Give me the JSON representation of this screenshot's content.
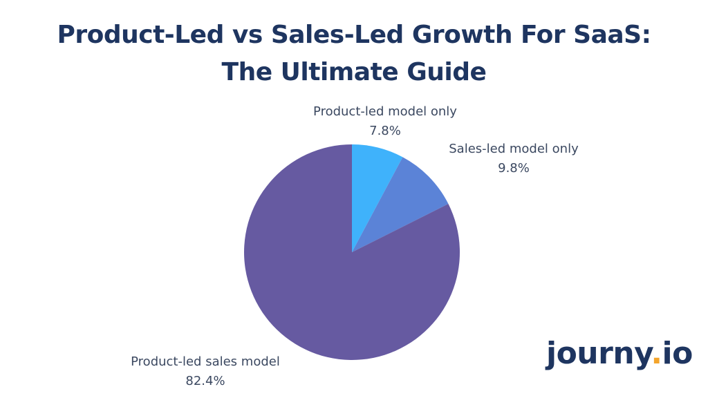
{
  "title": {
    "line1": "Product-Led vs Sales-Led Growth For SaaS:",
    "line2": "The Ultimate Guide"
  },
  "logo": {
    "name": "journy",
    "dot": ".",
    "suffix": "io",
    "text_color": "#1e3560",
    "dot_color": "#f4a52b"
  },
  "chart_data": {
    "type": "pie",
    "title": "Product-Led vs Sales-Led Growth For SaaS: The Ultimate Guide",
    "start_angle_deg": 0,
    "direction": "clockwise",
    "slices": [
      {
        "label": "Product-led model only",
        "value": 7.8,
        "value_label": "7.8%",
        "color": "#3fb2fb"
      },
      {
        "label": "Sales-led model only",
        "value": 9.8,
        "value_label": "9.8%",
        "color": "#5b83d7"
      },
      {
        "label": "Product-led sales model",
        "value": 82.4,
        "value_label": "82.4%",
        "color": "#665aa1"
      }
    ]
  }
}
